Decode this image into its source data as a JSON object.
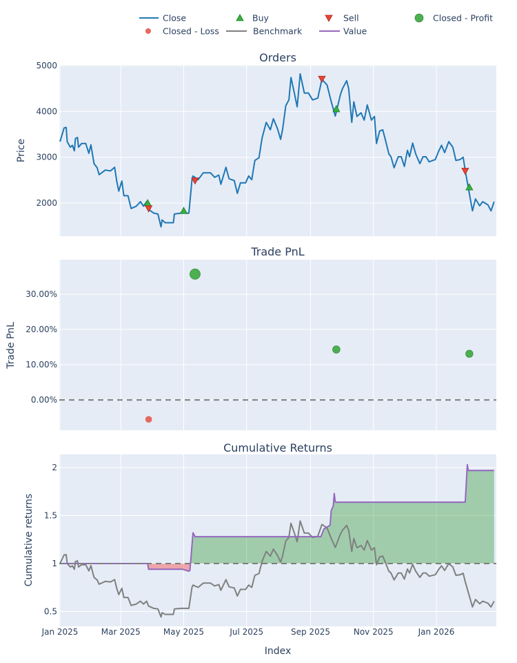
{
  "legend": {
    "items": [
      {
        "label": "Close",
        "symbol": "line",
        "color": "#1f77b4"
      },
      {
        "label": "Buy",
        "symbol": "triangle-up",
        "color": "#37b13f"
      },
      {
        "label": "Sell",
        "symbol": "triangle-down",
        "color": "#ea4335"
      },
      {
        "label": "Closed - Profit",
        "symbol": "circle",
        "color": "#4caf50"
      },
      {
        "label": "Closed - Loss",
        "symbol": "circle",
        "color": "#e5695f"
      },
      {
        "label": "Benchmark",
        "symbol": "line",
        "color": "#7f7f7f"
      },
      {
        "label": "Value",
        "symbol": "line",
        "color": "#9467bd"
      }
    ],
    "placement": "top"
  },
  "xaxis": {
    "title": "Index",
    "range": [
      "2025-01-01",
      "2026-02-27"
    ],
    "ticks": [
      {
        "date": "2025-01-01",
        "label": "Jan 2025"
      },
      {
        "date": "2025-03-01",
        "label": "Mar 2025"
      },
      {
        "date": "2025-05-01",
        "label": "May 2025"
      },
      {
        "date": "2025-07-01",
        "label": "Jul 2025"
      },
      {
        "date": "2025-09-01",
        "label": "Sep 2025"
      },
      {
        "date": "2025-11-01",
        "label": "Nov 2025"
      },
      {
        "date": "2026-01-01",
        "label": "Jan 2026"
      }
    ]
  },
  "chart_data": [
    {
      "type": "line",
      "title": "Orders",
      "ylabel": "Price",
      "ylim": [
        1276,
        5015
      ],
      "yticks": [
        {
          "v": 2000,
          "label": "2000"
        },
        {
          "v": 3000,
          "label": "3000"
        },
        {
          "v": 4000,
          "label": "4000"
        },
        {
          "v": 5000,
          "label": "5000"
        }
      ],
      "grid": true,
      "series": [
        {
          "name": "Close",
          "color": "#1f77b4",
          "x": [
            "2025-01-01",
            "2025-01-05",
            "2025-01-07",
            "2025-01-08",
            "2025-01-11",
            "2025-01-13",
            "2025-01-15",
            "2025-01-16",
            "2025-01-18",
            "2025-01-19",
            "2025-01-22",
            "2025-01-26",
            "2025-01-29",
            "2025-01-31",
            "2025-02-03",
            "2025-02-06",
            "2025-02-08",
            "2025-02-14",
            "2025-02-19",
            "2025-02-23",
            "2025-02-25",
            "2025-02-27",
            "2025-03-02",
            "2025-03-04",
            "2025-03-08",
            "2025-03-11",
            "2025-03-16",
            "2025-03-20",
            "2025-03-23",
            "2025-03-26",
            "2025-03-28",
            "2025-04-02",
            "2025-04-06",
            "2025-04-09",
            "2025-04-10",
            "2025-04-13",
            "2025-04-21",
            "2025-04-22",
            "2025-04-28",
            "2025-05-06",
            "2025-05-09",
            "2025-05-10",
            "2025-05-15",
            "2025-05-20",
            "2025-05-27",
            "2025-05-31",
            "2025-06-04",
            "2025-06-06",
            "2025-06-11",
            "2025-06-14",
            "2025-06-19",
            "2025-06-22",
            "2025-06-25",
            "2025-06-30",
            "2025-07-03",
            "2025-07-06",
            "2025-07-09",
            "2025-07-13",
            "2025-07-16",
            "2025-07-20",
            "2025-07-24",
            "2025-07-27",
            "2025-07-31",
            "2025-08-03",
            "2025-08-05",
            "2025-08-08",
            "2025-08-11",
            "2025-08-13",
            "2025-08-16",
            "2025-08-19",
            "2025-08-22",
            "2025-08-26",
            "2025-08-30",
            "2025-09-03",
            "2025-09-08",
            "2025-09-12",
            "2025-09-17",
            "2025-09-21",
            "2025-09-25",
            "2025-09-30",
            "2025-10-02",
            "2025-10-06",
            "2025-10-08",
            "2025-10-11",
            "2025-10-13",
            "2025-10-16",
            "2025-10-20",
            "2025-10-23",
            "2025-10-26",
            "2025-10-30",
            "2025-11-02",
            "2025-11-04",
            "2025-11-07",
            "2025-11-10",
            "2025-11-12",
            "2025-11-16",
            "2025-11-18",
            "2025-11-21",
            "2025-11-25",
            "2025-11-28",
            "2025-12-01",
            "2025-12-04",
            "2025-12-06",
            "2025-12-09",
            "2025-12-12",
            "2025-12-16",
            "2025-12-19",
            "2025-12-22",
            "2025-12-25",
            "2025-12-31",
            "2026-01-03",
            "2026-01-06",
            "2026-01-09",
            "2026-01-13",
            "2026-01-17",
            "2026-01-20",
            "2026-01-24",
            "2026-01-27",
            "2026-01-29",
            "2026-02-01",
            "2026-02-05",
            "2026-02-08",
            "2026-02-12",
            "2026-02-15",
            "2026-02-20",
            "2026-02-23",
            "2026-02-26"
          ],
          "y": [
            3340,
            3640,
            3650,
            3340,
            3220,
            3260,
            3140,
            3410,
            3430,
            3220,
            3300,
            3300,
            3085,
            3270,
            2860,
            2770,
            2620,
            2720,
            2700,
            2780,
            2480,
            2260,
            2480,
            2160,
            2160,
            1880,
            1930,
            2030,
            1930,
            2030,
            1860,
            1780,
            1760,
            1480,
            1630,
            1570,
            1570,
            1760,
            1780,
            1780,
            2510,
            2590,
            2510,
            2660,
            2660,
            2560,
            2610,
            2410,
            2780,
            2530,
            2490,
            2210,
            2440,
            2440,
            2590,
            2510,
            2930,
            2990,
            3420,
            3760,
            3600,
            3840,
            3620,
            3390,
            3620,
            4125,
            4250,
            4740,
            4430,
            4100,
            4820,
            4400,
            4400,
            4250,
            4290,
            4700,
            4580,
            4220,
            3900,
            4370,
            4500,
            4670,
            4500,
            3760,
            4210,
            3890,
            3970,
            3810,
            4140,
            3810,
            3890,
            3300,
            3570,
            3600,
            3430,
            3070,
            3010,
            2770,
            3010,
            3010,
            2800,
            3150,
            3010,
            3310,
            3070,
            2860,
            3010,
            3010,
            2900,
            2950,
            3120,
            3260,
            3100,
            3340,
            3220,
            2930,
            2950,
            3000,
            2710,
            2330,
            1830,
            2090,
            1940,
            2030,
            1960,
            1830,
            2030
          ]
        },
        {
          "name": "Buy",
          "type": "scatter",
          "marker": "triangle-up",
          "color": "#37b13f",
          "x": [
            "2025-03-27",
            "2025-05-01",
            "2025-09-26",
            "2026-02-02"
          ],
          "y": [
            2000,
            1830,
            4050,
            2345
          ]
        },
        {
          "name": "Sell",
          "type": "scatter",
          "marker": "triangle-down",
          "color": "#ea4335",
          "x": [
            "2025-03-28",
            "2025-05-12",
            "2025-09-12",
            "2026-01-29"
          ],
          "y": [
            1880,
            2490,
            4710,
            2700
          ]
        }
      ]
    },
    {
      "type": "scatter",
      "title": "Trade PnL",
      "ylabel": "Trade PnL",
      "ylim": [
        -8.6,
        39.8
      ],
      "yticks": [
        {
          "v": 0,
          "label": "0.00%"
        },
        {
          "v": 10,
          "label": "10.00%"
        },
        {
          "v": 20,
          "label": "20.00%"
        },
        {
          "v": 30,
          "label": "30.00%"
        }
      ],
      "zero_line": "dashed",
      "grid": true,
      "series": [
        {
          "name": "Closed - Profit",
          "color": "#4caf50",
          "x": [
            "2025-05-12",
            "2025-09-26",
            "2026-02-02"
          ],
          "y": [
            35.7,
            14.3,
            13.1
          ]
        },
        {
          "name": "Closed - Loss",
          "color": "#e5695f",
          "x": [
            "2025-03-28"
          ],
          "y": [
            -5.5
          ]
        }
      ]
    },
    {
      "type": "line",
      "title": "Cumulative Returns",
      "ylabel": "Cumulative returns",
      "ylim": [
        0.345,
        2.137
      ],
      "yticks": [
        {
          "v": 0.5,
          "label": "0.5"
        },
        {
          "v": 1,
          "label": "1"
        },
        {
          "v": 1.5,
          "label": "1.5"
        },
        {
          "v": 2,
          "label": "2"
        }
      ],
      "baseline": 1,
      "fill_above_color": "rgba(0,128,0,0.3)",
      "fill_below_color": "rgba(255,0,0,0.3)",
      "grid": true,
      "series": [
        {
          "name": "Benchmark",
          "color": "#7f7f7f",
          "derived_from": "Close"
        },
        {
          "name": "Value",
          "color": "#9467bd",
          "x": [
            "2025-01-01",
            "2025-03-27",
            "2025-03-28",
            "2025-04-30",
            "2025-05-06",
            "2025-05-07",
            "2025-05-10",
            "2025-05-12",
            "2025-09-11",
            "2025-09-14",
            "2025-09-17",
            "2025-09-20",
            "2025-09-21",
            "2025-09-23",
            "2025-09-24",
            "2025-09-25",
            "2026-01-29",
            "2026-01-31",
            "2026-02-01",
            "2026-02-26"
          ],
          "y": [
            1.0,
            1.0,
            0.94,
            0.94,
            0.92,
            0.93,
            1.32,
            1.28,
            1.28,
            1.36,
            1.38,
            1.4,
            1.55,
            1.6,
            1.73,
            1.64,
            1.64,
            2.03,
            1.97,
            1.97
          ]
        }
      ]
    }
  ]
}
